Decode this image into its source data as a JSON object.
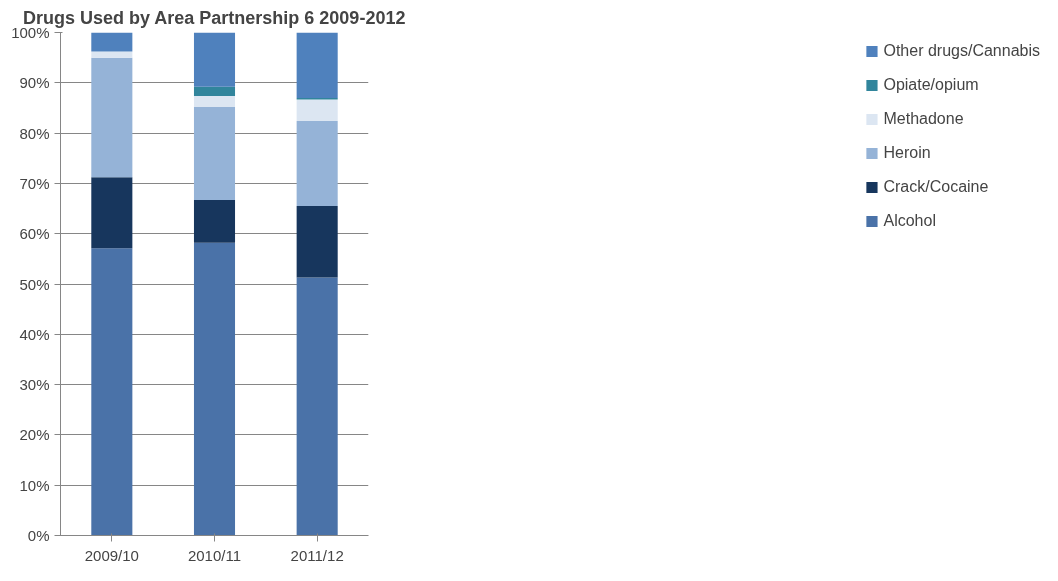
{
  "chart_data": {
    "type": "bar",
    "stacked": true,
    "title": "Drugs Used by Area Partnership 6 2009-2012",
    "categories": [
      "2009/10",
      "2010/11",
      "2011/12"
    ],
    "series": [
      {
        "name": "Alcohol",
        "color": "#4a72a8",
        "values": [
          57.1,
          58.2,
          51.3
        ]
      },
      {
        "name": "Crack/Cocaine",
        "color": "#17365d",
        "values": [
          14.1,
          8.5,
          14.2
        ]
      },
      {
        "name": "Heroin",
        "color": "#95b3d7",
        "values": [
          23.8,
          18.5,
          16.9
        ]
      },
      {
        "name": "Methadone",
        "color": "#dce6f2",
        "values": [
          1.2,
          2.2,
          4.3
        ]
      },
      {
        "name": "Opiate/opium",
        "color": "#31859c",
        "values": [
          0,
          1.8,
          0.3
        ]
      },
      {
        "name": "Other drugs/Cannabis",
        "color": "#4f81bd",
        "values": [
          3.8,
          10.8,
          13.0
        ]
      }
    ],
    "ylim": [
      0,
      100
    ],
    "yticks": [
      {
        "value": 0,
        "label": "0%"
      },
      {
        "value": 10,
        "label": "10%"
      },
      {
        "value": 20,
        "label": "20%"
      },
      {
        "value": 30,
        "label": "30%"
      },
      {
        "value": 40,
        "label": "40%"
      },
      {
        "value": 50,
        "label": "50%"
      },
      {
        "value": 60,
        "label": "60%"
      },
      {
        "value": 70,
        "label": "70%"
      },
      {
        "value": 80,
        "label": "80%"
      },
      {
        "value": 90,
        "label": "90%"
      },
      {
        "value": 100,
        "label": "100%"
      }
    ],
    "grid": "y",
    "legend": "right"
  }
}
